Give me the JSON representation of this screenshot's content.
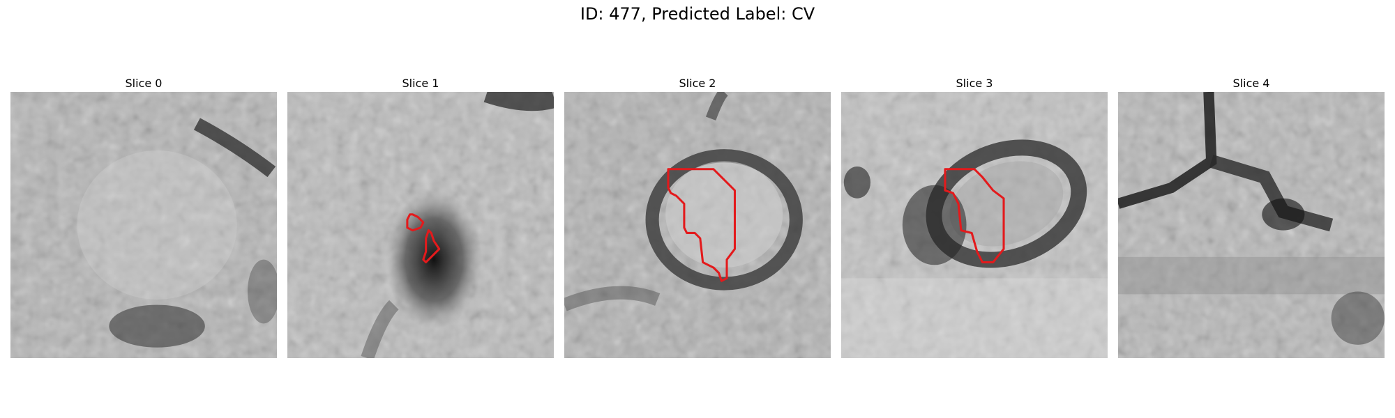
{
  "title": "ID: 477, Predicted Label: CV",
  "panels": [
    {
      "title": "Slice 0",
      "has_outline": false
    },
    {
      "title": "Slice 1",
      "has_outline": true
    },
    {
      "title": "Slice 2",
      "has_outline": true
    },
    {
      "title": "Slice 3",
      "has_outline": true
    },
    {
      "title": "Slice 4",
      "has_outline": false
    }
  ],
  "colors": {
    "outline": "#e31a1c",
    "background": "#ffffff"
  }
}
